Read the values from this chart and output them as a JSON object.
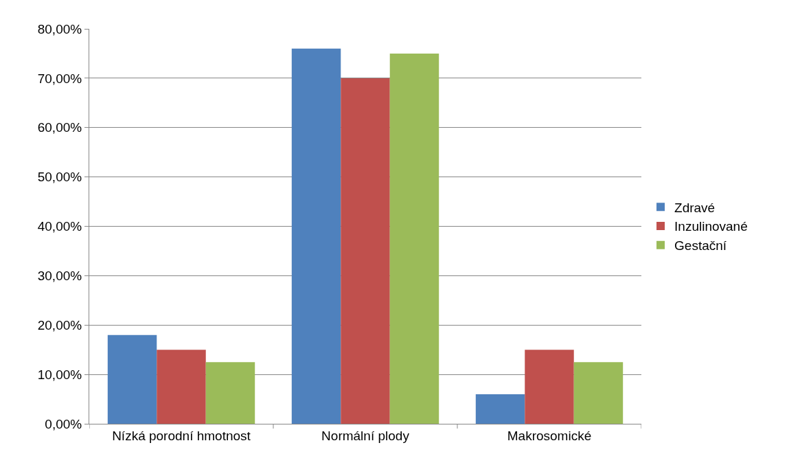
{
  "chart_data": {
    "type": "bar",
    "categories": [
      "Nízká porodní hmotnost",
      "Normální plody",
      "Makrosomické"
    ],
    "series": [
      {
        "name": "Zdravé",
        "color": "#4f81bd",
        "values": [
          18,
          76,
          6
        ]
      },
      {
        "name": "Inzulinované",
        "color": "#c0504d",
        "values": [
          15,
          70,
          15
        ]
      },
      {
        "name": "Gestační",
        "color": "#9bbb59",
        "values": [
          12.5,
          75,
          12.5
        ]
      }
    ],
    "ylim": [
      0,
      80
    ],
    "yticks": [
      {
        "value": 0,
        "label": "0,00%"
      },
      {
        "value": 10,
        "label": "10,00%"
      },
      {
        "value": 20,
        "label": "20,00%"
      },
      {
        "value": 30,
        "label": "30,00%"
      },
      {
        "value": 40,
        "label": "40,00%"
      },
      {
        "value": 50,
        "label": "50,00%"
      },
      {
        "value": 60,
        "label": "60,00%"
      },
      {
        "value": 70,
        "label": "70,00%"
      },
      {
        "value": 80,
        "label": "80,00%"
      }
    ],
    "grid": "y",
    "legend": "right"
  }
}
